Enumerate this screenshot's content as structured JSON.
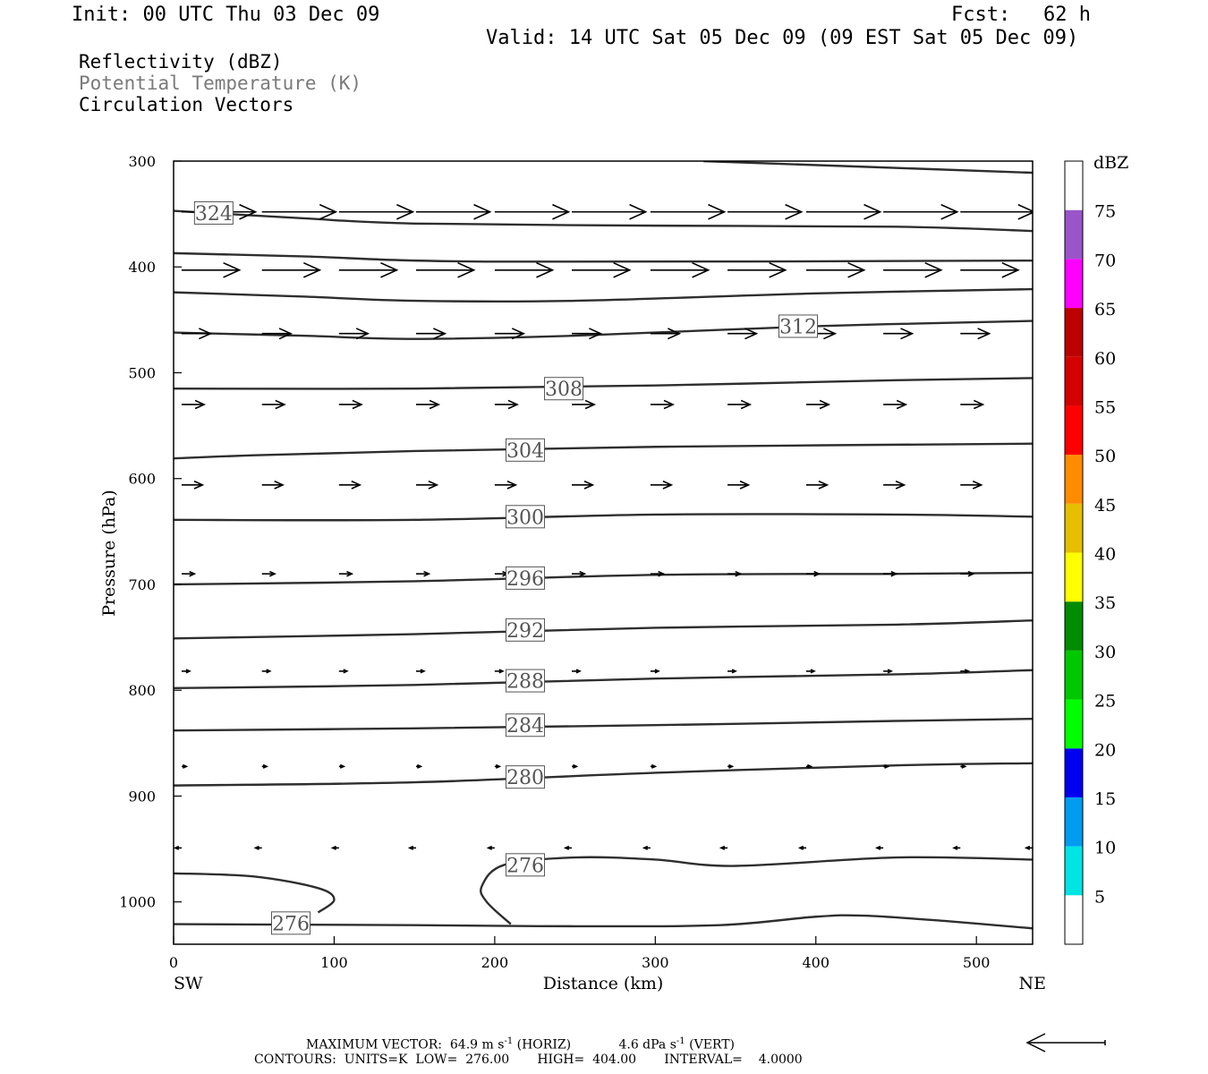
{
  "header": {
    "init": "Init: 00 UTC Thu 03 Dec 09",
    "fcst_label": "Fcst:",
    "fcst_value": "62 h",
    "valid": "Valid: 14 UTC Sat 05 Dec 09 (09 EST Sat 05 Dec 09)"
  },
  "legend": {
    "items": [
      "Reflectivity (dBZ)",
      "Potential Temperature (K)",
      "Circulation Vectors"
    ],
    "colors": [
      "#000000",
      "#7a7a7a",
      "#000000"
    ]
  },
  "footer": {
    "max_vector_label": "MAXIMUM VECTOR:",
    "max_vector_horiz": "64.9 m s",
    "max_vector_horiz_exp": "-1",
    "horiz_tag": "(HORIZ)",
    "max_vector_vert": "4.6 dPa s",
    "max_vector_vert_exp": "-1",
    "vert_tag": "(VERT)",
    "contours": "CONTOURS:  UNITS=K  LOW=  276.00       HIGH=  404.00       INTERVAL=    4.0000"
  },
  "chart_data": {
    "type": "line",
    "xlabel": "Distance (km)",
    "ylabel": "Pressure (hPa)",
    "x_end_labels": [
      "SW",
      "NE"
    ],
    "xlim": [
      0,
      535
    ],
    "ylim": [
      300,
      1040
    ],
    "y_inverted": true,
    "xticks": [
      0,
      100,
      200,
      300,
      400,
      500
    ],
    "yticks": [
      300,
      400,
      500,
      600,
      700,
      800,
      900,
      1000
    ],
    "grid": false,
    "contours": [
      {
        "label": "",
        "points": [
          [
            330,
            300
          ],
          [
            535,
            311
          ]
        ]
      },
      {
        "label": "324",
        "label_at": [
          25,
          349
        ],
        "points": [
          [
            0,
            347
          ],
          [
            80,
            354
          ],
          [
            150,
            359
          ],
          [
            300,
            361
          ],
          [
            450,
            362
          ],
          [
            535,
            366
          ]
        ]
      },
      {
        "label": "",
        "points": [
          [
            0,
            387
          ],
          [
            80,
            390
          ],
          [
            200,
            395
          ],
          [
            535,
            394
          ]
        ]
      },
      {
        "label": "",
        "points": [
          [
            0,
            424
          ],
          [
            80,
            428
          ],
          [
            150,
            432
          ],
          [
            250,
            432
          ],
          [
            400,
            425
          ],
          [
            535,
            421
          ]
        ]
      },
      {
        "label": "312",
        "label_at": [
          389,
          456
        ],
        "points": [
          [
            0,
            462
          ],
          [
            80,
            465
          ],
          [
            150,
            468
          ],
          [
            250,
            465
          ],
          [
            400,
            456
          ],
          [
            535,
            451
          ]
        ]
      },
      {
        "label": "308",
        "label_at": [
          243,
          515
        ],
        "points": [
          [
            0,
            515
          ],
          [
            150,
            515
          ],
          [
            300,
            512
          ],
          [
            450,
            507
          ],
          [
            535,
            505
          ]
        ]
      },
      {
        "label": "304",
        "label_at": [
          219,
          573
        ],
        "points": [
          [
            0,
            581
          ],
          [
            50,
            578
          ],
          [
            150,
            574
          ],
          [
            300,
            570
          ],
          [
            535,
            567
          ]
        ]
      },
      {
        "label": "300",
        "label_at": [
          219,
          636
        ],
        "points": [
          [
            0,
            639
          ],
          [
            150,
            639
          ],
          [
            300,
            634
          ],
          [
            450,
            634
          ],
          [
            535,
            636
          ]
        ]
      },
      {
        "label": "296",
        "label_at": [
          219,
          694
        ],
        "points": [
          [
            0,
            700
          ],
          [
            150,
            697
          ],
          [
            300,
            691
          ],
          [
            450,
            690
          ],
          [
            535,
            689
          ]
        ]
      },
      {
        "label": "292",
        "label_at": [
          219,
          743
        ],
        "points": [
          [
            0,
            751
          ],
          [
            150,
            747
          ],
          [
            300,
            741
          ],
          [
            450,
            738
          ],
          [
            535,
            734
          ]
        ]
      },
      {
        "label": "288",
        "label_at": [
          219,
          791
        ],
        "points": [
          [
            0,
            798
          ],
          [
            150,
            795
          ],
          [
            300,
            789
          ],
          [
            450,
            785
          ],
          [
            535,
            781
          ]
        ]
      },
      {
        "label": "284",
        "label_at": [
          219,
          833
        ],
        "points": [
          [
            0,
            838
          ],
          [
            150,
            836
          ],
          [
            300,
            833
          ],
          [
            450,
            829
          ],
          [
            535,
            827
          ]
        ]
      },
      {
        "label": "280",
        "label_at": [
          219,
          882
        ],
        "points": [
          [
            0,
            890
          ],
          [
            150,
            887
          ],
          [
            300,
            878
          ],
          [
            450,
            871
          ],
          [
            535,
            869
          ]
        ]
      },
      {
        "label": "276",
        "label_at": [
          219,
          965
        ],
        "points": [
          [
            0,
            973
          ],
          [
            50,
            976
          ],
          [
            90,
            987
          ],
          [
            100,
            998
          ],
          [
            90,
            1010
          ]
        ]
      },
      {
        "label": "",
        "points": [
          [
            210,
            1021
          ],
          [
            195,
            1000
          ],
          [
            192,
            985
          ],
          [
            206,
            965
          ],
          [
            250,
            958
          ],
          [
            300,
            960
          ],
          [
            350,
            966
          ],
          [
            450,
            958
          ],
          [
            535,
            960
          ]
        ]
      },
      {
        "label": "276",
        "label_at": [
          73,
          1020
        ],
        "points": [
          [
            0,
            1021
          ],
          [
            150,
            1022
          ],
          [
            250,
            1023
          ],
          [
            340,
            1022
          ],
          [
            400,
            1014
          ],
          [
            430,
            1013
          ],
          [
            480,
            1018
          ],
          [
            535,
            1025
          ]
        ]
      }
    ],
    "vectors": [
      {
        "p": 348,
        "length_km": 46,
        "start_offset": 0
      },
      {
        "p": 403,
        "length_km": 36,
        "start_offset": 0
      },
      {
        "p": 463,
        "length_km": 18,
        "start_offset": 0
      },
      {
        "p": 530,
        "length_km": 14,
        "start_offset": 0
      },
      {
        "p": 606,
        "length_km": 13,
        "start_offset": 0
      },
      {
        "p": 690,
        "length_km": 8,
        "start_offset": 0
      },
      {
        "p": 782,
        "length_km": 5,
        "start_offset": 0
      },
      {
        "p": 872,
        "length_km": 3,
        "start_offset": 0
      },
      {
        "p": 949,
        "length_km": -4,
        "start_offset": 0
      }
    ],
    "vector_x": [
      5,
      55,
      103,
      151,
      200,
      248,
      297,
      345,
      394,
      442,
      490,
      535
    ],
    "colorbar": {
      "label": "dBZ",
      "levels": [
        "5",
        "10",
        "15",
        "20",
        "25",
        "30",
        "35",
        "40",
        "45",
        "50",
        "55",
        "60",
        "65",
        "70",
        "75"
      ],
      "colors": [
        "#ffffff",
        "#00e4e4",
        "#009cf0",
        "#0000f0",
        "#00ff00",
        "#00c800",
        "#008c00",
        "#ffff00",
        "#e6bf00",
        "#ff8c00",
        "#ff0000",
        "#d40000",
        "#bc0000",
        "#ff00ff",
        "#9955c9",
        "#ffffff"
      ]
    }
  }
}
